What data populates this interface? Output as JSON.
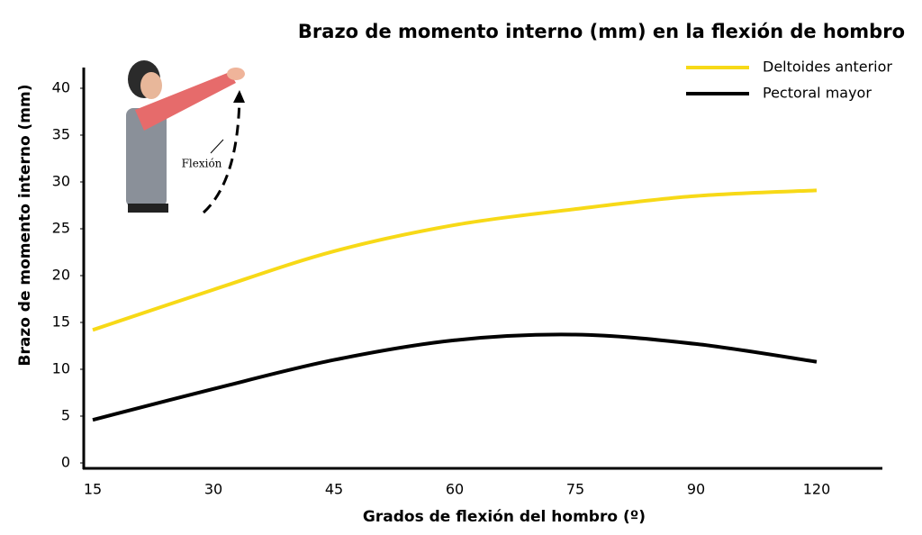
{
  "chart_data": {
    "type": "line",
    "title": "Brazo de momento interno (mm) en la flexión de hombro",
    "x_label": "Grados de flexión del hombro (º)",
    "y_label": "Brazo de momento interno (mm)",
    "annotation": "Flexión",
    "categories": [
      "15",
      "30",
      "45",
      "60",
      "75",
      "90",
      "120"
    ],
    "series": [
      {
        "name": "Deltoides anterior",
        "color": "#f7d917",
        "values": [
          14.2,
          18.5,
          22.6,
          25.4,
          27.1,
          28.5,
          29.1
        ]
      },
      {
        "name": "Pectoral mayor",
        "color": "#000000",
        "values": [
          4.6,
          7.9,
          11.0,
          13.1,
          13.7,
          12.7,
          10.8
        ]
      }
    ],
    "ylim": [
      0,
      42
    ],
    "yticks": [
      0,
      5,
      10,
      15,
      20,
      25,
      30,
      35,
      40
    ],
    "grid": false,
    "legend": "top-right"
  }
}
